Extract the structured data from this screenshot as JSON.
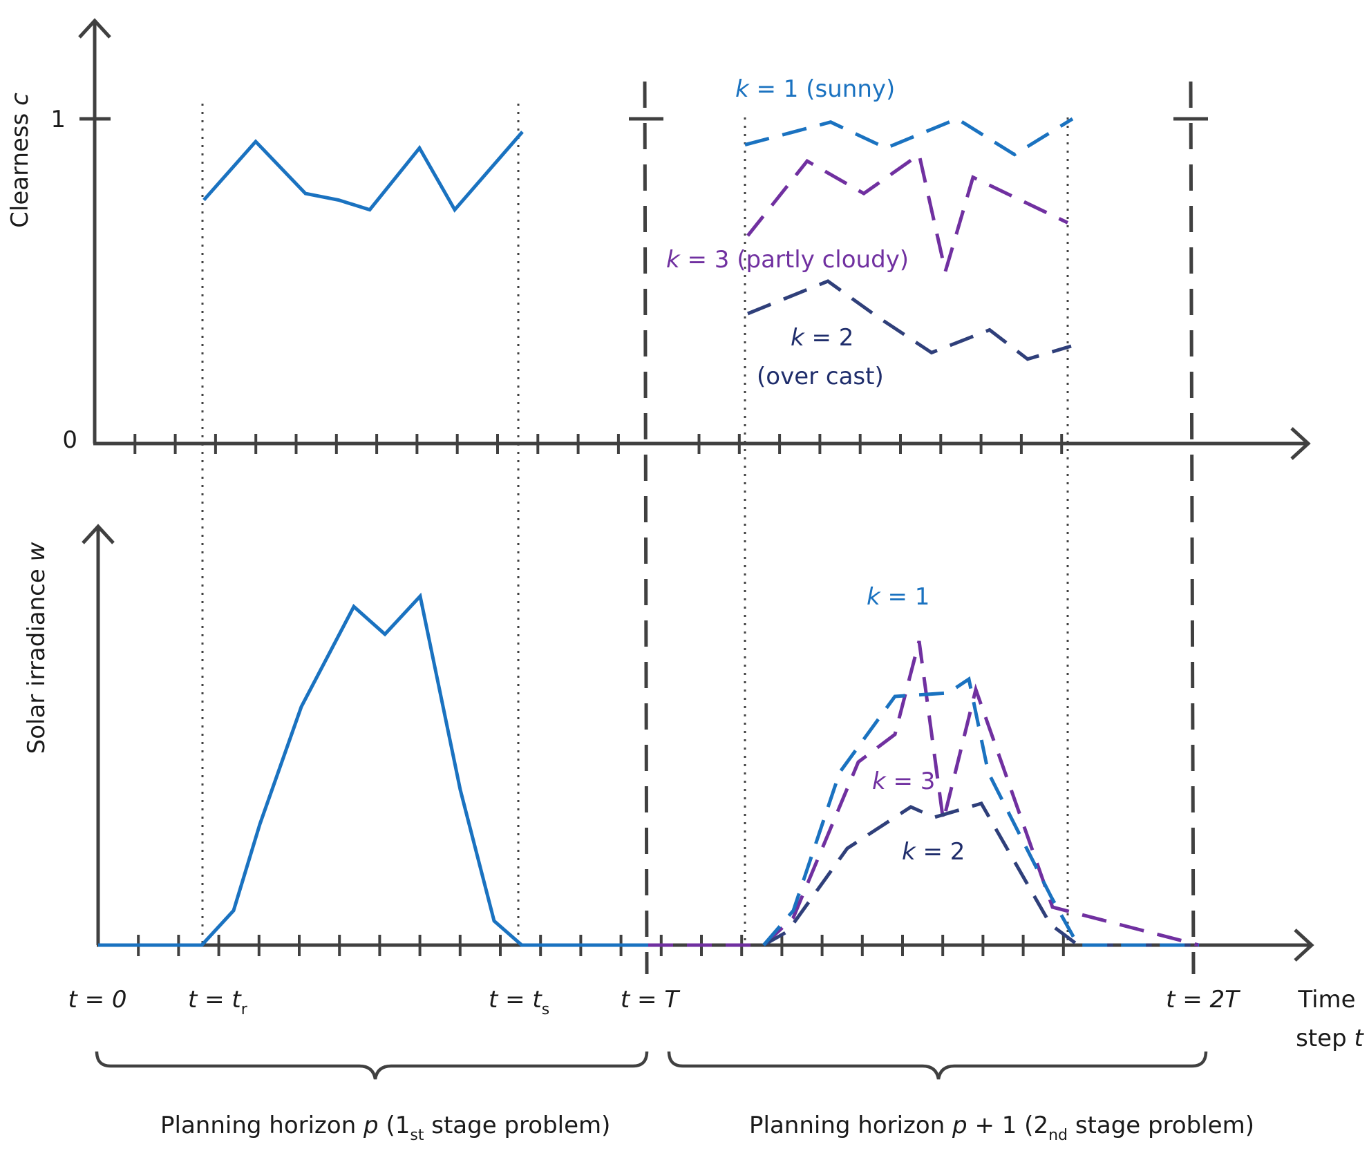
{
  "colors": {
    "axis": "#404040",
    "k1": "#1a72c0",
    "k2": "#2f3f7a",
    "k3": "#7030a0",
    "text_k2": "#1f2d6b"
  },
  "top": {
    "ylabel": "Clearness",
    "ylabel_var": "c",
    "tick_1": "1",
    "tick_0": "0"
  },
  "bottom": {
    "ylabel": "Solar irradiance",
    "ylabel_var": "w"
  },
  "labels": {
    "k_var": "k",
    "k1_top": "= 1 (sunny)",
    "k3_top": "= 3 (partly cloudy)",
    "k2_top_a": "= 2",
    "k2_top_b": "(over cast)",
    "k1_bottom": "= 1",
    "k3_bottom": "= 3",
    "k2_bottom": "= 2"
  },
  "time_axis": {
    "t0": "t = 0",
    "tr_main": "t = t",
    "tr_sub": "r",
    "ts_main": "t = t",
    "ts_sub": "s",
    "tT": "t = T",
    "t2T": "t = 2T",
    "title_line1": "Time",
    "title_line2": "step",
    "title_var": "t"
  },
  "horizons": {
    "p_a": "Planning horizon ",
    "p_var": "p",
    "p_b": " (1",
    "p_sub": "st",
    "p_c": " stage problem)",
    "p1_a": "Planning horizon ",
    "p1_var": "p",
    "p1_b": " + 1 (2",
    "p1_sub": "nd",
    "p1_c": " stage problem)"
  },
  "chart_data": {
    "clearness_observed": [
      0.75,
      0.93,
      0.77,
      0.75,
      0.72,
      0.91,
      0.72,
      0.96
    ],
    "clearness_scenarios": {
      "k1": [
        0.92,
        0.99,
        0.91,
        1.0,
        0.89,
        1.0
      ],
      "k3": [
        0.64,
        0.87,
        0.77,
        0.89,
        0.53,
        0.82,
        0.68
      ],
      "k2": [
        0.4,
        0.5,
        0.39,
        0.28,
        0.35,
        0.26,
        0.3
      ]
    },
    "irradiance_observed": [
      0,
      0,
      0,
      0.1,
      0.35,
      0.69,
      0.98,
      0.9,
      1.01,
      0.45,
      0.07,
      0,
      0,
      0
    ],
    "irradiance_scenarios": {
      "k1": [
        0,
        0.1,
        0.5,
        0.97,
        1.06,
        0.14,
        0,
        0
      ],
      "k3": [
        0,
        0.08,
        0.53,
        0.61,
        0.88,
        0.44,
        0.74,
        0.11,
        0,
        0
      ],
      "k2": [
        0,
        0.04,
        0.28,
        0.4,
        0.41,
        0.06,
        0,
        0
      ]
    }
  }
}
